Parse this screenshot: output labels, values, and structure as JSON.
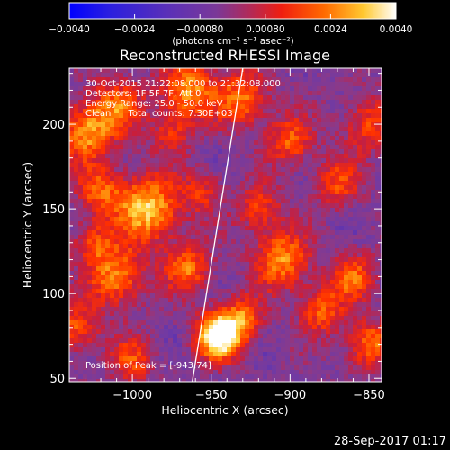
{
  "chart_data": {
    "type": "heatmap",
    "title": "Reconstructed RHESSI Image",
    "xlabel": "Heliocentric X (arcsec)",
    "ylabel": "Heliocentric Y (arcsec)",
    "xlim": [
      -1040,
      -842
    ],
    "ylim": [
      48,
      233
    ],
    "x_ticks": [
      -1000,
      -950,
      -900,
      -850
    ],
    "x_tick_labels": [
      "−1000",
      "−950",
      "−900",
      "−850"
    ],
    "y_ticks": [
      50,
      100,
      150,
      200
    ],
    "y_tick_labels": [
      "50",
      "100",
      "150",
      "200"
    ],
    "colorbar": {
      "range": [
        -0.004,
        0.004
      ],
      "ticks": [
        -0.004,
        -0.0024,
        -0.0008,
        0.0008,
        0.0024,
        0.004
      ],
      "tick_labels": [
        "−0.0040",
        "−0.0024",
        "−0.00080",
        "0.00080",
        "0.0024",
        "0.0040"
      ],
      "units_label": "(photons cm⁻² s⁻¹ asec⁻²)"
    },
    "colormap_stops": [
      "#0000ff",
      "#3a20c8",
      "#6e3aa6",
      "#8a3a8a",
      "#c81e3c",
      "#ff3000",
      "#ff7a00",
      "#ffd23a",
      "#ffffff"
    ],
    "annotations": [
      "30-Oct-2015 21:22:08.000 to 21:32:08.000",
      "Detectors: 1F 5F 7F, Att 0",
      "Energy Range: 25.0 - 50.0 keV",
      "Clean      Total counts: 7.30E+03"
    ],
    "peak_label": "Position of Peak = [-943,74]",
    "peak_position": [
      -943,
      74
    ],
    "limb_line": [
      [
        -962,
        48
      ],
      [
        -930,
        233
      ]
    ],
    "grid": false
  },
  "footer": {
    "timestamp": "28-Sep-2017 01:17"
  }
}
